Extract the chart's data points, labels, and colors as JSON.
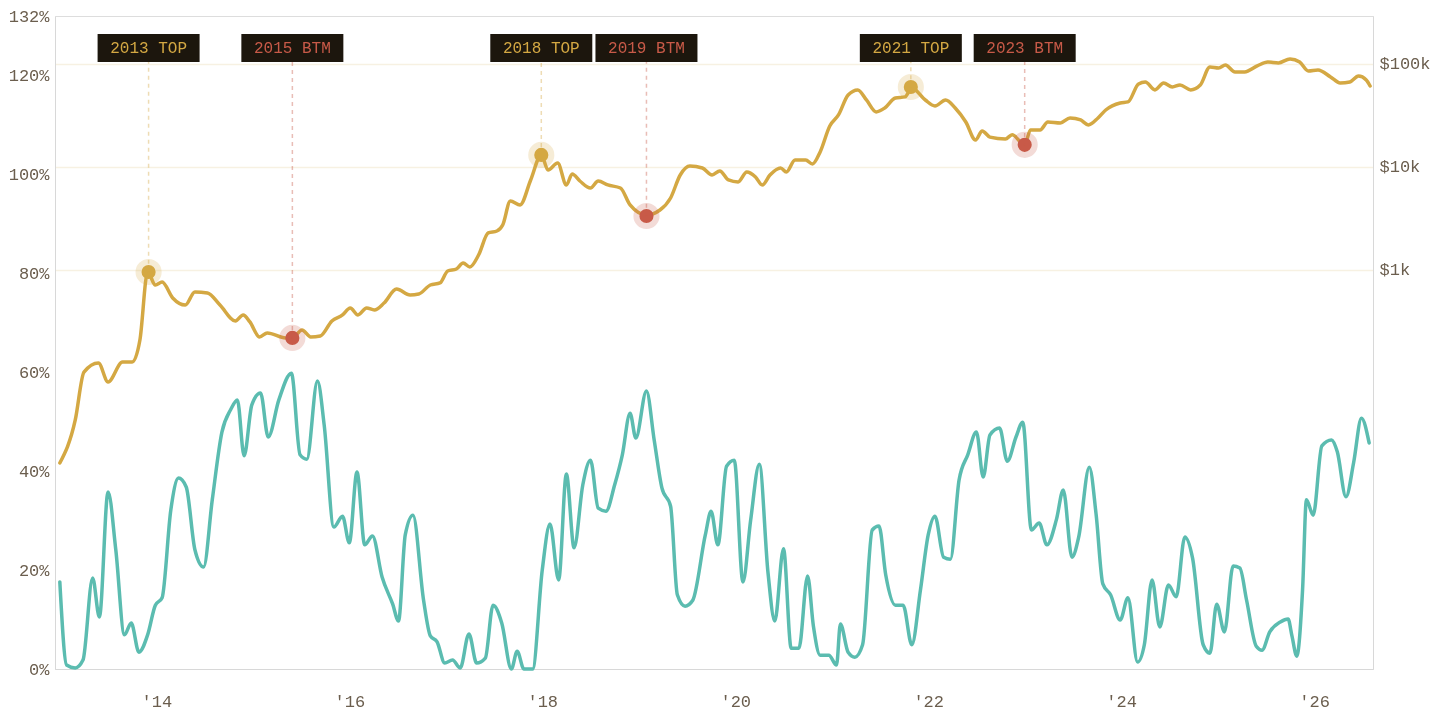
{
  "chart_data": {
    "type": "line",
    "xlim": [
      2012.95,
      2026.61
    ],
    "xticks": [
      {
        "value": 2014,
        "label": "'14"
      },
      {
        "value": 2016,
        "label": "'16"
      },
      {
        "value": 2018,
        "label": "'18"
      },
      {
        "value": 2020,
        "label": "'20"
      },
      {
        "value": 2022,
        "label": "'22"
      },
      {
        "value": 2024,
        "label": "'24"
      },
      {
        "value": 2026,
        "label": "'26"
      }
    ],
    "ylim": [
      0,
      132
    ],
    "yticks": [
      {
        "value": 0,
        "label": "0%"
      },
      {
        "value": 20,
        "label": "20%"
      },
      {
        "value": 40,
        "label": "40%"
      },
      {
        "value": 60,
        "label": "60%"
      },
      {
        "value": 80,
        "label": "80%"
      },
      {
        "value": 100,
        "label": "100%"
      },
      {
        "value": 120,
        "label": "120%"
      },
      {
        "value": 132,
        "label": "132%"
      }
    ],
    "y2lim": [
      0.134,
      292000
    ],
    "y2ticks": [
      {
        "value": 1000,
        "label": "$1k"
      },
      {
        "value": 10000,
        "label": "$10k"
      },
      {
        "value": 100000,
        "label": "$100k"
      }
    ],
    "log": "y2",
    "grid": "y2",
    "series": [
      {
        "axis": "y",
        "color": "#5bbcb0",
        "x": [
          2013.0,
          2013.07,
          2013.16,
          2013.24,
          2013.34,
          2013.41,
          2013.5,
          2013.58,
          2013.67,
          2013.74,
          2013.82,
          2013.91,
          2013.99,
          2014.06,
          2014.15,
          2014.23,
          2014.31,
          2014.4,
          2014.49,
          2014.58,
          2014.68,
          2014.77,
          2014.84,
          2014.91,
          2014.99,
          2015.08,
          2015.16,
          2015.27,
          2015.4,
          2015.49,
          2015.56,
          2015.67,
          2015.74,
          2015.84,
          2015.93,
          2016.0,
          2016.08,
          2016.16,
          2016.24,
          2016.34,
          2016.45,
          2016.51,
          2016.58,
          2016.66,
          2016.77,
          2016.84,
          2016.91,
          2016.99,
          2017.07,
          2017.15,
          2017.24,
          2017.32,
          2017.41,
          2017.49,
          2017.58,
          2017.68,
          2017.74,
          2017.81,
          2017.9,
          2018.0,
          2018.08,
          2018.17,
          2018.25,
          2018.33,
          2018.42,
          2018.5,
          2018.58,
          2018.66,
          2018.75,
          2018.83,
          2018.91,
          2018.97,
          2019.08,
          2019.16,
          2019.24,
          2019.33,
          2019.4,
          2019.48,
          2019.56,
          2019.69,
          2019.75,
          2019.82,
          2019.91,
          2019.99,
          2020.08,
          2020.16,
          2020.25,
          2020.34,
          2020.41,
          2020.5,
          2020.58,
          2020.66,
          2020.75,
          2020.81,
          2020.88,
          2020.97,
          2021.05,
          2021.09,
          2021.17,
          2021.24,
          2021.32,
          2021.42,
          2021.49,
          2021.56,
          2021.66,
          2021.74,
          2021.83,
          2021.92,
          2022.0,
          2022.07,
          2022.16,
          2022.23,
          2022.32,
          2022.41,
          2022.5,
          2022.57,
          2022.64,
          2022.74,
          2022.82,
          2022.91,
          2022.98,
          2023.07,
          2023.15,
          2023.23,
          2023.33,
          2023.4,
          2023.49,
          2023.56,
          2023.67,
          2023.74,
          2023.81,
          2023.89,
          2023.99,
          2024.07,
          2024.17,
          2024.24,
          2024.32,
          2024.4,
          2024.49,
          2024.57,
          2024.66,
          2024.74,
          2024.85,
          2024.92,
          2024.99,
          2025.07,
          2025.16,
          2025.23,
          2025.3,
          2025.4,
          2025.46,
          2025.54,
          2025.65,
          2025.73,
          2025.77,
          2025.82,
          2025.88,
          2025.92,
          2025.99,
          2026.08,
          2026.18,
          2026.24,
          2026.33,
          2026.41,
          2026.49,
          2026.57
        ],
        "values": [
          17.6,
          0.8,
          0.2,
          1.8,
          18.4,
          10.5,
          35.8,
          24.1,
          6.9,
          9.3,
          3.4,
          6.9,
          12.9,
          14.4,
          32.1,
          38.6,
          36.8,
          24.1,
          20.6,
          34.2,
          47.9,
          52.4,
          54.4,
          43.1,
          53.4,
          55.8,
          46.9,
          54.4,
          59.8,
          43.3,
          42.4,
          58.2,
          49.3,
          28.7,
          30.9,
          25.5,
          39.8,
          25.1,
          26.9,
          18.6,
          13.1,
          9.7,
          27.1,
          31.1,
          13.9,
          6.7,
          5.5,
          1.2,
          1.8,
          0.2,
          7.1,
          1.2,
          2.2,
          12.9,
          9.3,
          0,
          3.6,
          0,
          0,
          20.0,
          29.3,
          18.0,
          39.4,
          24.5,
          37.2,
          42.2,
          32.5,
          31.9,
          37.2,
          43.3,
          51.7,
          46.7,
          56.2,
          46.3,
          36.6,
          32.9,
          15.0,
          12.7,
          13.9,
          27.1,
          31.9,
          25.1,
          41.0,
          42.2,
          17.6,
          30.1,
          41.4,
          19.4,
          9.7,
          24.3,
          4.2,
          4.2,
          18.8,
          8.7,
          2.8,
          2.8,
          0.8,
          9.1,
          3.4,
          2.4,
          4.9,
          28.1,
          28.9,
          19.0,
          12.9,
          12.9,
          4.9,
          16.0,
          27.1,
          30.9,
          22.6,
          22.2,
          38.2,
          43.3,
          47.9,
          38.8,
          47.3,
          48.7,
          42.0,
          46.9,
          49.9,
          28.1,
          29.5,
          25.1,
          30.3,
          36.2,
          22.6,
          26.7,
          40.8,
          31.3,
          17.2,
          15.0,
          9.9,
          14.4,
          1.4,
          4.9,
          18.0,
          8.5,
          17.0,
          14.6,
          26.7,
          22.4,
          4.9,
          3.2,
          13.1,
          7.5,
          20.8,
          20.4,
          13.9,
          4.6,
          3.8,
          7.5,
          9.5,
          10.1,
          6.7,
          2.6,
          16.0,
          34.2,
          31.1,
          45.1,
          46.3,
          43.9,
          34.8,
          41.8,
          50.7,
          45.7
        ]
      },
      {
        "axis": "y2",
        "color": "#d4a843",
        "x": [
          2013.0,
          2013.16,
          2013.25,
          2013.4,
          2013.5,
          2013.65,
          2013.75,
          2013.83,
          2013.91,
          2013.99,
          2014.06,
          2014.17,
          2014.3,
          2014.4,
          2014.53,
          2014.66,
          2014.82,
          2014.9,
          2014.97,
          2015.07,
          2015.15,
          2015.34,
          2015.41,
          2015.51,
          2015.6,
          2015.7,
          2015.82,
          2015.93,
          2016.01,
          2016.09,
          2016.18,
          2016.26,
          2016.36,
          2016.49,
          2016.63,
          2016.72,
          2016.84,
          2016.94,
          2017.02,
          2017.11,
          2017.18,
          2017.25,
          2017.34,
          2017.44,
          2017.53,
          2017.59,
          2017.67,
          2017.77,
          2017.88,
          2017.99,
          2018.06,
          2018.16,
          2018.25,
          2018.31,
          2018.39,
          2018.5,
          2018.58,
          2018.68,
          2018.81,
          2018.91,
          2019.08,
          2019.22,
          2019.33,
          2019.43,
          2019.53,
          2019.66,
          2019.76,
          2019.84,
          2019.93,
          2020.03,
          2020.12,
          2020.21,
          2020.28,
          2020.36,
          2020.47,
          2020.53,
          2020.62,
          2020.73,
          2020.8,
          2020.88,
          2020.98,
          2021.07,
          2021.17,
          2021.27,
          2021.36,
          2021.46,
          2021.55,
          2021.66,
          2021.76,
          2021.83,
          2021.97,
          2022.07,
          2022.18,
          2022.28,
          2022.39,
          2022.49,
          2022.56,
          2022.64,
          2022.8,
          2022.87,
          2023.0,
          2023.06,
          2023.16,
          2023.24,
          2023.37,
          2023.47,
          2023.58,
          2023.66,
          2023.76,
          2023.84,
          2023.99,
          2024.07,
          2024.18,
          2024.25,
          2024.35,
          2024.44,
          2024.53,
          2024.61,
          2024.72,
          2024.82,
          2024.92,
          2025.01,
          2025.08,
          2025.18,
          2025.28,
          2025.41,
          2025.52,
          2025.63,
          2025.75,
          2025.85,
          2025.94,
          2026.04,
          2026.17,
          2026.27,
          2026.37,
          2026.46,
          2026.54,
          2026.58
        ],
        "values": [
          13.4,
          35,
          102,
          125,
          82,
          128,
          128,
          209,
          957,
          715,
          764,
          535,
          457,
          611,
          598,
          457,
          320,
          366,
          313,
          224,
          245,
          219,
          219,
          262,
          224,
          229,
          320,
          366,
          428,
          366,
          428,
          409,
          478,
          654,
          572,
          585,
          715,
          748,
          978,
          1023,
          1170,
          1070,
          1398,
          2290,
          2390,
          2730,
          4680,
          4280,
          7480,
          13100,
          9350,
          10900,
          6690,
          8550,
          7310,
          6250,
          7310,
          6690,
          6250,
          4280,
          3420,
          3820,
          5000,
          8360,
          10200,
          9780,
          8360,
          9150,
          7480,
          7150,
          8940,
          8000,
          6690,
          8360,
          9780,
          8940,
          11700,
          11700,
          10700,
          14000,
          25000,
          32000,
          50000,
          56000,
          44700,
          34200,
          37400,
          46800,
          47900,
          58500,
          44700,
          39100,
          44700,
          37400,
          27300,
          18300,
          22400,
          19500,
          18700,
          20500,
          16400,
          22900,
          22900,
          27300,
          26700,
          29900,
          28600,
          25600,
          29900,
          35700,
          41800,
          42800,
          64000,
          66900,
          56000,
          65400,
          59800,
          62500,
          56000,
          62500,
          93500,
          91400,
          97800,
          83600,
          83600,
          95700,
          104500,
          102300,
          112000,
          104500,
          85500,
          87500,
          74800,
          65400,
          66900,
          76400,
          70000,
          61100
        ]
      },
      {
        "type": "scatter",
        "axis": "y2",
        "color": "#d4a843",
        "x": [
          2013.92,
          2017.99,
          2021.82
        ],
        "values": [
          957,
          13100,
          59800
        ]
      },
      {
        "type": "scatter",
        "axis": "y2",
        "color": "#c85a48",
        "x": [
          2015.41,
          2019.08,
          2023.0
        ],
        "values": [
          219,
          3340,
          16400
        ]
      }
    ],
    "annotations": [
      {
        "text": "2013 TOP",
        "x": 2013.92,
        "y": 80.3
      },
      {
        "text": "2015 BTM",
        "x": 2015.41,
        "y": 66.9
      },
      {
        "text": "2018 TOP",
        "x": 2017.99,
        "y": 103.9
      },
      {
        "text": "2019 BTM",
        "x": 2019.08,
        "y": 91.6
      },
      {
        "text": "2021 TOP",
        "x": 2021.82,
        "y": 117.6
      },
      {
        "text": "2023 BTM",
        "x": 2023.0,
        "y": 105.9
      }
    ]
  }
}
